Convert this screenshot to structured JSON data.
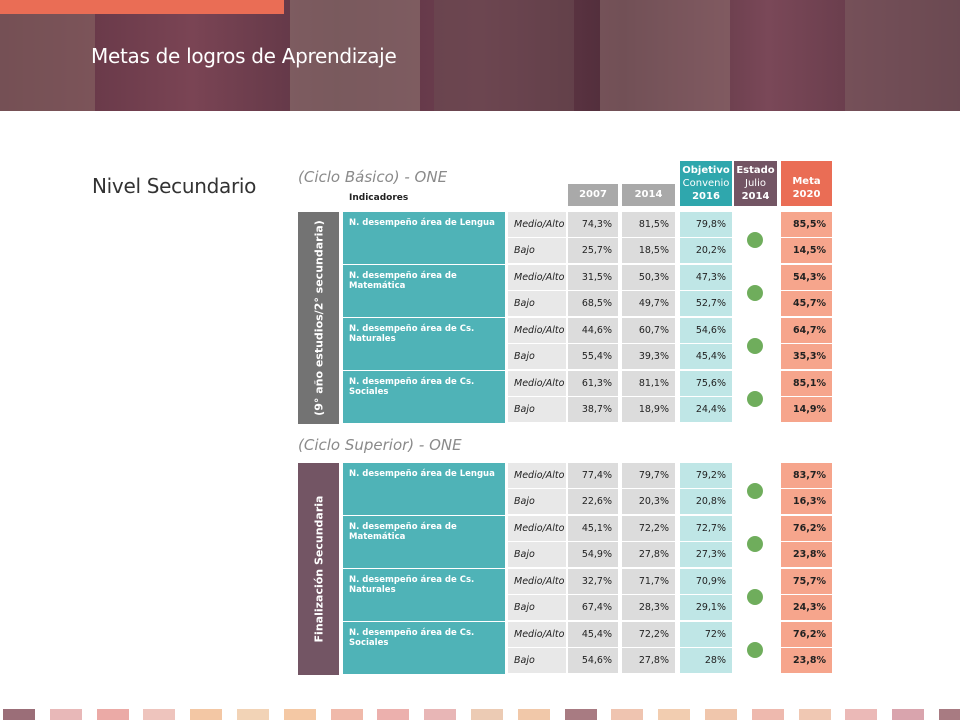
{
  "header": {
    "title": "Metas de logros de Aprendizaje"
  },
  "level_title": "Nivel Secundario",
  "columns": {
    "indicadores": "Indicadores",
    "y2007": "2007",
    "y2014": "2014",
    "objetivo": [
      "Objetivo",
      "Convenio",
      "2016"
    ],
    "estado": [
      "Estado",
      "Julio",
      "2014"
    ],
    "meta": [
      "Meta",
      "2020"
    ]
  },
  "sections": [
    {
      "title": "(Ciclo Básico) - ONE",
      "band": "(9° año estudios/2° secundaria)",
      "band_color": "#737373",
      "rows": [
        {
          "indicator": "N. desempeño área de Lengua",
          "levels": [
            {
              "level": "Medio/Alto",
              "y2007": "74,3%",
              "y2014": "81,5%",
              "obj": "79,8%",
              "meta": "85,5%"
            },
            {
              "level": "Bajo",
              "y2007": "25,7%",
              "y2014": "18,5%",
              "obj": "20,2%",
              "meta": "14,5%"
            }
          ]
        },
        {
          "indicator": "N. desempeño área de Matemática",
          "levels": [
            {
              "level": "Medio/Alto",
              "y2007": "31,5%",
              "y2014": "50,3%",
              "obj": "47,3%",
              "meta": "54,3%"
            },
            {
              "level": "Bajo",
              "y2007": "68,5%",
              "y2014": "49,7%",
              "obj": "52,7%",
              "meta": "45,7%"
            }
          ]
        },
        {
          "indicator": "N. desempeño área de Cs. Naturales",
          "levels": [
            {
              "level": "Medio/Alto",
              "y2007": "44,6%",
              "y2014": "60,7%",
              "obj": "54,6%",
              "meta": "64,7%"
            },
            {
              "level": "Bajo",
              "y2007": "55,4%",
              "y2014": "39,3%",
              "obj": "45,4%",
              "meta": "35,3%"
            }
          ]
        },
        {
          "indicator": "N. desempeño área de Cs. Sociales",
          "levels": [
            {
              "level": "Medio/Alto",
              "y2007": "61,3%",
              "y2014": "81,1%",
              "obj": "75,6%",
              "meta": "85,1%"
            },
            {
              "level": "Bajo",
              "y2007": "38,7%",
              "y2014": "18,9%",
              "obj": "24,4%",
              "meta": "14,9%"
            }
          ]
        }
      ]
    },
    {
      "title": "(Ciclo Superior) - ONE",
      "band": "Finalización Secundaria",
      "band_color": "#735564",
      "rows": [
        {
          "indicator": "N. desempeño área de Lengua",
          "levels": [
            {
              "level": "Medio/Alto",
              "y2007": "77,4%",
              "y2014": "79,7%",
              "obj": "79,2%",
              "meta": "83,7%"
            },
            {
              "level": "Bajo",
              "y2007": "22,6%",
              "y2014": "20,3%",
              "obj": "20,8%",
              "meta": "16,3%"
            }
          ]
        },
        {
          "indicator": "N. desempeño área de Matemática",
          "levels": [
            {
              "level": "Medio/Alto",
              "y2007": "45,1%",
              "y2014": "72,2%",
              "obj": "72,7%",
              "meta": "76,2%"
            },
            {
              "level": "Bajo",
              "y2007": "54,9%",
              "y2014": "27,8%",
              "obj": "27,3%",
              "meta": "23,8%"
            }
          ]
        },
        {
          "indicator": "N. desempeño área de Cs. Naturales",
          "levels": [
            {
              "level": "Medio/Alto",
              "y2007": "32,7%",
              "y2014": "71,7%",
              "obj": "70,9%",
              "meta": "75,7%"
            },
            {
              "level": "Bajo",
              "y2007": "67,4%",
              "y2014": "28,3%",
              "obj": "29,1%",
              "meta": "24,3%"
            }
          ]
        },
        {
          "indicator": "N. desempeño área de Cs. Sociales",
          "levels": [
            {
              "level": "Medio/Alto",
              "y2007": "45,4%",
              "y2014": "72,2%",
              "obj": "72%",
              "meta": "76,2%"
            },
            {
              "level": "Bajo",
              "y2007": "54,6%",
              "y2014": "27,8%",
              "obj": "28%",
              "meta": "23,8%"
            }
          ]
        }
      ]
    }
  ],
  "colors": {
    "header_accent": "#ea6d55",
    "indicator_teal": "#4fb3b7",
    "objetivo_head": "#2fa7ad",
    "estado_head": "#735564",
    "meta_head": "#ea6d55",
    "status_dot": "#6fad5c"
  },
  "footer_colors": [
    "#9b6e78",
    "#e8b8b8",
    "#ebaaa6",
    "#eec4bd",
    "#f3c7a4",
    "#f2d3b6",
    "#f4c8a4",
    "#f0b9aa",
    "#ecb0ad",
    "#e8b6b6",
    "#eccbb4",
    "#f1c8a9",
    "#a87b82",
    "#efc4b0",
    "#f2cdb0",
    "#f0c6ac",
    "#eeb9ae",
    "#f0c8b3",
    "#ebb9b7",
    "#d9a4ad",
    "#a87b82"
  ]
}
